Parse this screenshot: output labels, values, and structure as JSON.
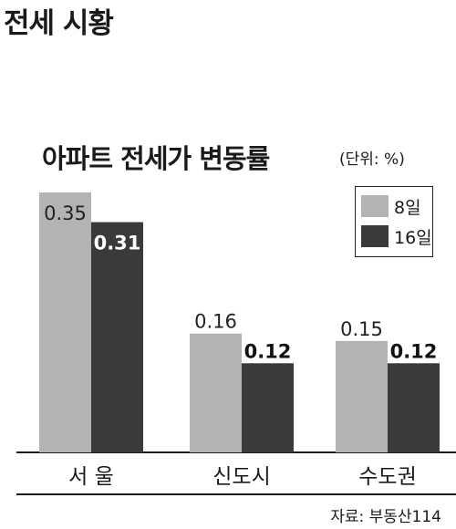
{
  "heading": "전세 시황",
  "source": "자료: 부동산114",
  "chart_data": {
    "type": "bar",
    "title": "아파트 전세가 변동률",
    "unit": "(단위: %)",
    "categories": [
      "서 울",
      "신도시",
      "수도권"
    ],
    "series": [
      {
        "name": "8일",
        "values": [
          0.35,
          0.16,
          0.15
        ],
        "labels": [
          "0.35",
          "0.16",
          "0.15"
        ],
        "color": "#b3b3b3"
      },
      {
        "name": "16일",
        "values": [
          0.31,
          0.12,
          0.12
        ],
        "labels": [
          "0.31",
          "0.12",
          "0.12"
        ],
        "color": "#3a3a3a"
      }
    ],
    "ylim": [
      0,
      0.35
    ],
    "grid": false,
    "legend": "top-right"
  }
}
